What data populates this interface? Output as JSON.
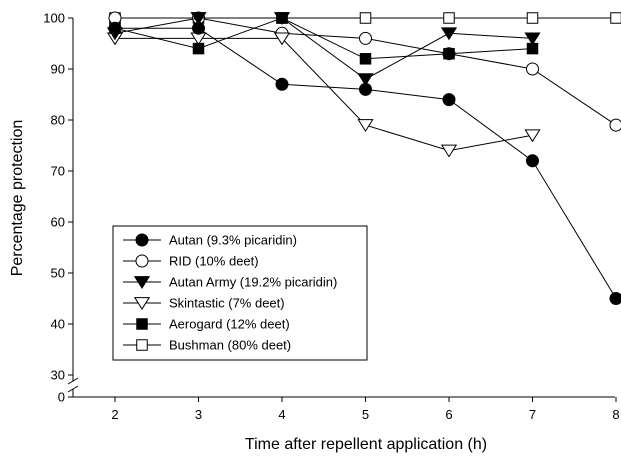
{
  "chart_data": {
    "type": "line",
    "title": "",
    "xlabel": "Time after repellent application (h)",
    "ylabel": "Percentage protection",
    "x": [
      2,
      3,
      4,
      5,
      6,
      7,
      8
    ],
    "xlim": [
      1.3,
      8.05
    ],
    "ylim": [
      30,
      100
    ],
    "y_axis_break": true,
    "y_ticks": [
      "30",
      "40",
      "50",
      "60",
      "70",
      "80",
      "90",
      "100"
    ],
    "y_zero_label": "0",
    "x_ticks": [
      "2",
      "3",
      "4",
      "5",
      "6",
      "7",
      "8"
    ],
    "grid": false,
    "legend_position": "lower-left",
    "series": [
      {
        "name": "Autan (9.3% picaridin)",
        "marker": "circle",
        "fill": "filled",
        "values": [
          98,
          98,
          87,
          86,
          84,
          72,
          45
        ]
      },
      {
        "name": "RID (10% deet)",
        "marker": "circle",
        "fill": "open",
        "values": [
          100,
          100,
          97,
          96,
          93,
          90,
          79
        ]
      },
      {
        "name": "Autan Army (19.2% picaridin)",
        "marker": "triangle-down",
        "fill": "filled",
        "values": [
          97,
          100,
          100,
          88,
          97,
          96,
          null
        ]
      },
      {
        "name": "Skintastic (7% deet)",
        "marker": "triangle-down",
        "fill": "open",
        "values": [
          96,
          96,
          96,
          79,
          74,
          77,
          null
        ]
      },
      {
        "name": "Aerogard (12% deet)",
        "marker": "square",
        "fill": "filled",
        "values": [
          98,
          94,
          100,
          92,
          93,
          94,
          null
        ]
      },
      {
        "name": "Bushman (80% deet)",
        "marker": "square",
        "fill": "open",
        "values": [
          100,
          100,
          100,
          100,
          100,
          100,
          100
        ]
      }
    ],
    "colors": {
      "line": "#000000",
      "open_fill": "#ffffff"
    }
  }
}
